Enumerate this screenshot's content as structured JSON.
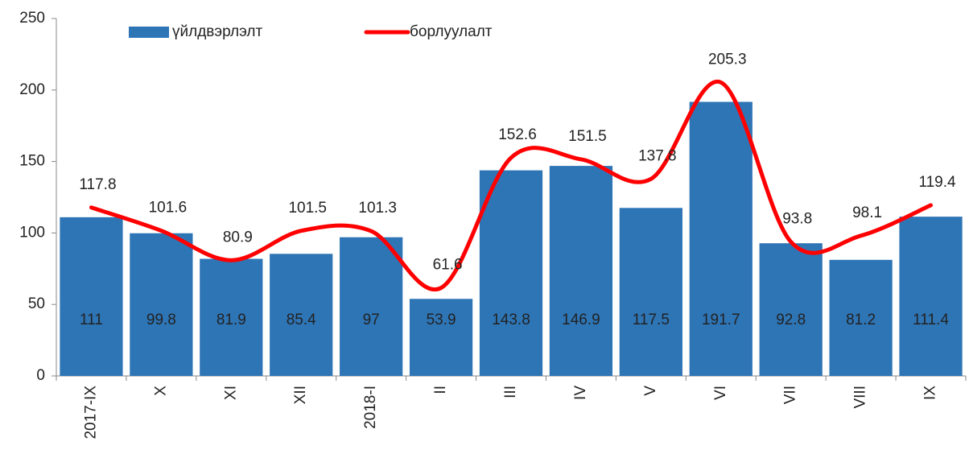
{
  "chart_data": {
    "type": "bar",
    "categories": [
      "2017-IX",
      "X",
      "XI",
      "XII",
      "2018-I",
      "II",
      "III",
      "IV",
      "V",
      "VI",
      "VII",
      "VIII",
      "IX"
    ],
    "series": [
      {
        "name": "үйлдвэрлэлт",
        "type": "bar",
        "color": "#2e75b6",
        "values": [
          111,
          99.8,
          81.9,
          85.4,
          97,
          53.9,
          143.8,
          146.9,
          117.5,
          191.7,
          92.8,
          81.2,
          111.4
        ]
      },
      {
        "name": "борлуулалт",
        "type": "line",
        "color": "#ff0000",
        "values": [
          117.8,
          101.6,
          80.9,
          101.5,
          101.3,
          61.6,
          152.6,
          151.5,
          137.8,
          205.3,
          93.8,
          98.1,
          119.4
        ]
      }
    ],
    "ylim": [
      0,
      250
    ],
    "yticks": [
      0,
      50,
      100,
      150,
      200,
      250
    ],
    "legend": "top"
  }
}
